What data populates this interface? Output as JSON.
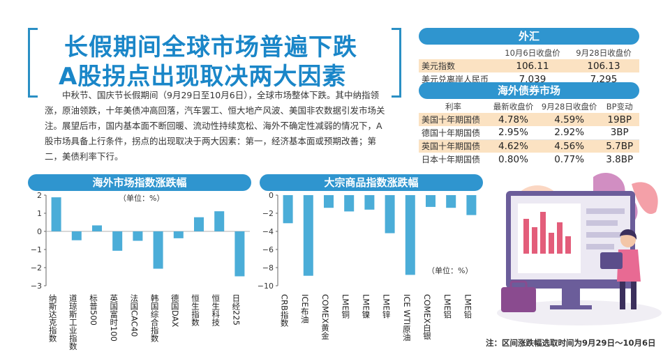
{
  "headline": {
    "line1": "长假期间全球市场普遍下跌",
    "line2": "A股拐点出现取决两大因素"
  },
  "intro": "中秋节、国庆节长假期间（9月29日至10月6日），全球市场整体下跌。其中纳指领涨，原油领跌，十年美债冲高回落，汽车罢工、恒大地产风波、美国非农数据引发市场关注。展望后市，国内基本面不断回暖、流动性持续宽松、海外不确定性减弱的情况下，A股市场具备上行条件，拐点的出现取决于两大因素：第一，经济基本面或预期改善；第二，美债利率下行。",
  "fx": {
    "title": "外汇",
    "col1": "10月6日收盘价",
    "col2": "9月28日收盘价",
    "rows": [
      {
        "name": "美元指数",
        "v1": "106.11",
        "v2": "106.13"
      },
      {
        "name": "美元兑离岸人民币",
        "v1": "7.039",
        "v2": "7.295"
      }
    ]
  },
  "bonds": {
    "title": "海外债券市场",
    "headers": [
      "利率",
      "最新收盘价",
      "9月28日收盘价",
      "BP变动"
    ],
    "rows": [
      {
        "name": "美国十年期国债",
        "latest": "4.78%",
        "prev": "4.59%",
        "bp": "19BP"
      },
      {
        "name": "德国十年期国债",
        "latest": "2.95%",
        "prev": "2.92%",
        "bp": "3BP"
      },
      {
        "name": "英国十年期国债",
        "latest": "4.62%",
        "prev": "4.56%",
        "bp": "5.7BP"
      },
      {
        "name": "日本十年期国债",
        "latest": "0.80%",
        "prev": "0.77%",
        "bp": "3.8BP"
      }
    ]
  },
  "chart_data": [
    {
      "type": "bar",
      "title": "海外市场指数涨跌幅",
      "unit_label": "（单位：%）",
      "categories": [
        "纳斯达克指数",
        "道琼斯工业指数",
        "标普500",
        "英国富时100",
        "法国CAC40",
        "韩国综合指数",
        "德国DAX",
        "恒生指数",
        "恒生科技",
        "日经225"
      ],
      "values": [
        1.88,
        -0.49,
        0.33,
        -1.07,
        -0.52,
        -2.06,
        -0.38,
        0.78,
        1.11,
        -2.48
      ],
      "ylim": [
        -3,
        2
      ],
      "yticks": [
        "2",
        "1",
        "0",
        "−1",
        "−2",
        "−3"
      ],
      "color": "#4badd8"
    },
    {
      "type": "bar",
      "title": "大宗商品指数涨跌幅",
      "unit_label": "（单位：%）",
      "categories": [
        "CRB指数",
        "ICE布油",
        "COMEX黄金",
        "LME铜",
        "LME镍",
        "LME锌",
        "ICE WTI原油",
        "COMEX白银",
        "LME铝",
        "LME铅"
      ],
      "values": [
        -3.1,
        -8.9,
        -1.4,
        -1.8,
        -1.6,
        -4.2,
        -8.8,
        -1.3,
        -1.4,
        -2.2
      ],
      "ylim": [
        -10,
        0
      ],
      "yticks": [
        "0",
        "−2",
        "−4",
        "−6",
        "−8",
        "−10"
      ],
      "color": "#4badd8"
    }
  ],
  "note": "注：区间涨跌幅选取时间为9月29日～10月6日"
}
